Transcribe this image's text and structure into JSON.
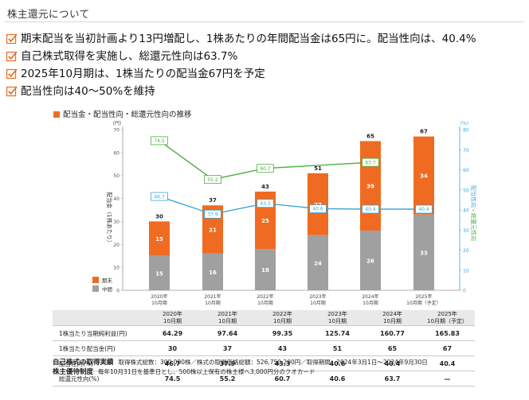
{
  "section_title": "株主還元について",
  "key_points": [
    "期末配当を当初計画より13円増配し、1株あたりの年間配当金は65円に。配当性向は、40.4%",
    "自己株式取得を実施し、総還元性向は63.7%",
    "2025年10月期は、1株当たりの配当金67円を予定",
    "配当性向は40〜50%を維持"
  ],
  "chart_heading": "配当金・配当性向・総還元性向の推移",
  "colors": {
    "orange": "#ef6b22",
    "gray": "#a0a0a0",
    "green": "#4caf3e",
    "blue": "#3aa7d8"
  },
  "chart_data": {
    "type": "bar",
    "categories": [
      [
        "2020年",
        "10月期"
      ],
      [
        "2021年",
        "10月期"
      ],
      [
        "2022年",
        "10月期"
      ],
      [
        "2023年",
        "10月期"
      ],
      [
        "2024年",
        "10月期"
      ],
      [
        "2025年",
        "10月期（予定）"
      ]
    ],
    "left_axis": {
      "unit": "(円)",
      "label": "配当金（1株あたり）",
      "ylim": [
        0,
        70
      ],
      "ticks": [
        0,
        10,
        20,
        30,
        40,
        50,
        60,
        70
      ]
    },
    "right_axis": {
      "unit": "(%)",
      "label_blue": "配当性向",
      "label_sep": "・",
      "label_green": "総還元性向",
      "ylim": [
        0,
        80
      ],
      "ticks": [
        0,
        10,
        20,
        30,
        40,
        50,
        60,
        70,
        80
      ]
    },
    "series": [
      {
        "name": "中間",
        "kind": "bar",
        "values": [
          15,
          16,
          18,
          24,
          26,
          33
        ]
      },
      {
        "name": "期末",
        "kind": "bar",
        "values": [
          15,
          21,
          25,
          27,
          39,
          34
        ]
      },
      {
        "name": "",
        "kind": "line",
        "axis": "right",
        "color": "blue",
        "values": [
          46.7,
          37.9,
          43.3,
          40.6,
          40.4,
          40.4
        ]
      },
      {
        "name": "",
        "kind": "line",
        "axis": "right",
        "color": "green",
        "values": [
          74.5,
          55.2,
          60.7,
          null,
          63.7,
          null
        ]
      }
    ],
    "totals": [
      30,
      37,
      43,
      51,
      65,
      67
    ]
  },
  "table": {
    "headers": [
      [
        "2020年",
        "10月期"
      ],
      [
        "2021年",
        "10月期"
      ],
      [
        "2022年",
        "10月期"
      ],
      [
        "2023年",
        "10月期"
      ],
      [
        "2024年",
        "10月期"
      ],
      [
        "2025年",
        "10月期（予定）"
      ]
    ],
    "rows": [
      {
        "label": "1株当たり当期純利益(円)",
        "values": [
          "64.29",
          "97.64",
          "99.35",
          "125.74",
          "160.77",
          "165.83"
        ]
      },
      {
        "label": "1株当たり配当金(円)",
        "values": [
          "30",
          "37",
          "43",
          "51",
          "65",
          "67"
        ]
      },
      {
        "label": "配当性向(%)",
        "values": [
          "46.7",
          "37.9",
          "43.3",
          "40.6",
          "40.4",
          "40.4"
        ]
      },
      {
        "label": "総還元性向(%)",
        "values": [
          "74.5",
          "55.2",
          "60.7",
          "40.6",
          "63.7",
          "—"
        ]
      }
    ]
  },
  "notes": {
    "buyback_title": "自己株式の取得実績",
    "buyback_text": "取得株式総数：300,000株／株式の取得価格総額：526,750,200円／取得期間：2024年3月1日〜2024年9月30日",
    "benefit_title": "株主優待制度",
    "benefit_text": "毎年10月31日を基準日とし、500株以上保有の株主様へ3,000円分のクオカード"
  }
}
